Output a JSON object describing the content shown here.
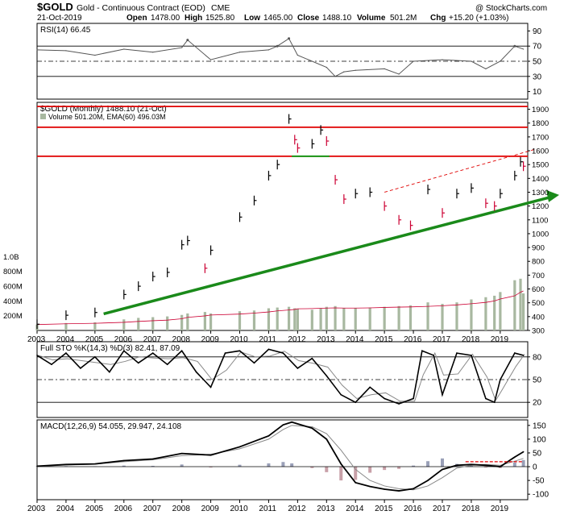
{
  "header": {
    "symbol": "$GOLD",
    "name": "Gold - Continuous Contract (EOD)",
    "exchange": "CME",
    "date": "21-Oct-2019",
    "open_label": "Open",
    "open": "1478.00",
    "high_label": "High",
    "high": "1525.80",
    "low_label": "Low",
    "low": "1465.00",
    "close_label": "Close",
    "close": "1488.10",
    "volume_label": "Volume",
    "volume": "501.2M",
    "chg_label": "Chg",
    "chg": "+15.20 (+1.03%)",
    "watermark": "@ StockCharts.com"
  },
  "colors": {
    "up": "#000000",
    "down": "#cc0033",
    "resistance": "#e00000",
    "trend": "#1a8a1a",
    "support": "#1a9a1a",
    "volume": "#a8b8a0",
    "ema": "#cc0033",
    "indicator": "#000000",
    "signal": "#888888"
  },
  "chart_data": [
    {
      "type": "line",
      "panel": "rsi",
      "legend": "RSI(14) 66.45",
      "y_ticks": [
        10,
        30,
        50,
        70,
        90
      ],
      "levels": [
        30,
        70
      ],
      "ylim": [
        0,
        100
      ],
      "x": [
        2003.0,
        2004.0,
        2005.0,
        2006.0,
        2007.0,
        2008.0,
        2008.2,
        2009.0,
        2010.0,
        2011.0,
        2011.3,
        2011.7,
        2012.0,
        2013.0,
        2013.3,
        2013.6,
        2014.0,
        2015.0,
        2015.5,
        2016.0,
        2017.0,
        2018.0,
        2018.5,
        2019.0,
        2019.5,
        2019.8
      ],
      "values": [
        65,
        64,
        58,
        66,
        62,
        68,
        78,
        52,
        62,
        65,
        70,
        80,
        58,
        42,
        30,
        36,
        38,
        40,
        33,
        50,
        52,
        50,
        40,
        50,
        70,
        66
      ]
    },
    {
      "type": "bar",
      "panel": "price",
      "legend_price": "$GOLD (Monthly) 1488.10 (21-Oct)",
      "legend_volume": "Volume 501.20M, EMA(60) 496.03M",
      "y_ticks": [
        300,
        400,
        500,
        600,
        700,
        800,
        900,
        1000,
        1100,
        1200,
        1300,
        1400,
        1500,
        1600,
        1700,
        1800,
        1900
      ],
      "volume_ticks": [
        "200M",
        "400M",
        "600M",
        "800M",
        "1.0B"
      ],
      "volume_tick_values": [
        200,
        400,
        600,
        800,
        1000
      ],
      "ylim": [
        300,
        1950
      ],
      "resistance_levels": [
        1920,
        1770,
        1560
      ],
      "support_line": {
        "x": [
          2011.8,
          2013.1
        ],
        "y": [
          1560,
          1560
        ]
      },
      "trendline": {
        "x": [
          2005.3,
          2020.2
        ],
        "y": [
          420,
          1280
        ]
      },
      "channel_line": {
        "x": [
          2015.0,
          2020.2
        ],
        "y": [
          1300,
          1610
        ]
      },
      "x": [
        2003.0,
        2004.0,
        2005.0,
        2006.0,
        2006.5,
        2007.0,
        2007.5,
        2008.0,
        2008.2,
        2008.8,
        2009.0,
        2010.0,
        2010.5,
        2011.0,
        2011.3,
        2011.7,
        2011.9,
        2012.0,
        2012.5,
        2012.8,
        2013.0,
        2013.3,
        2013.6,
        2014.0,
        2014.5,
        2015.0,
        2015.5,
        2015.9,
        2016.5,
        2017.0,
        2017.5,
        2018.0,
        2018.5,
        2018.8,
        2019.0,
        2019.5,
        2019.7,
        2019.8
      ],
      "values": [
        345,
        410,
        430,
        560,
        620,
        690,
        720,
        920,
        950,
        750,
        880,
        1120,
        1240,
        1420,
        1500,
        1830,
        1680,
        1620,
        1650,
        1750,
        1670,
        1390,
        1250,
        1290,
        1300,
        1200,
        1100,
        1060,
        1320,
        1150,
        1290,
        1330,
        1220,
        1200,
        1290,
        1420,
        1520,
        1488
      ],
      "volume_values": [
        80,
        100,
        110,
        150,
        170,
        180,
        190,
        210,
        230,
        250,
        230,
        260,
        270,
        300,
        310,
        320,
        300,
        290,
        280,
        300,
        320,
        330,
        300,
        300,
        310,
        320,
        330,
        340,
        380,
        360,
        380,
        420,
        450,
        470,
        520,
        680,
        700,
        501
      ]
    },
    {
      "type": "line",
      "panel": "stochastics",
      "legend": "Full STO %K(14,3) %D(3) 82.41, 87.09",
      "y_ticks": [
        20,
        50,
        80
      ],
      "levels": [
        20,
        50,
        80
      ],
      "ylim": [
        0,
        100
      ],
      "x": [
        2003.0,
        2003.5,
        2004.0,
        2004.5,
        2005.0,
        2005.5,
        2006.0,
        2006.5,
        2007.0,
        2007.5,
        2008.0,
        2008.5,
        2009.0,
        2009.5,
        2010.0,
        2010.5,
        2011.0,
        2011.5,
        2012.0,
        2012.5,
        2013.0,
        2013.5,
        2014.0,
        2014.5,
        2015.0,
        2015.5,
        2016.0,
        2016.3,
        2016.7,
        2017.0,
        2017.5,
        2018.0,
        2018.5,
        2018.8,
        2019.0,
        2019.5,
        2019.8
      ],
      "values": [
        82,
        70,
        85,
        65,
        80,
        60,
        88,
        72,
        85,
        70,
        88,
        60,
        40,
        85,
        88,
        72,
        90,
        85,
        65,
        78,
        55,
        30,
        20,
        40,
        25,
        18,
        25,
        88,
        82,
        30,
        85,
        82,
        25,
        20,
        50,
        85,
        82
      ]
    },
    {
      "type": "line",
      "panel": "macd",
      "legend": "MACD(12,26,9) 54.055, 29.947, 24.108",
      "y_ticks": [
        -100,
        -50,
        0,
        50,
        100,
        150
      ],
      "ylim": [
        -120,
        170
      ],
      "annotation_line": {
        "x": [
          2017.8,
          2019.8
        ],
        "y": [
          18,
          18
        ]
      },
      "x": [
        2003.0,
        2004.0,
        2005.0,
        2006.0,
        2007.0,
        2008.0,
        2009.0,
        2010.0,
        2011.0,
        2011.5,
        2011.8,
        2012.5,
        2013.0,
        2013.5,
        2014.0,
        2014.5,
        2015.0,
        2015.5,
        2016.0,
        2016.5,
        2017.0,
        2017.5,
        2018.0,
        2018.5,
        2019.0,
        2019.5,
        2019.8
      ],
      "macd": [
        2,
        8,
        10,
        22,
        28,
        48,
        42,
        72,
        112,
        152,
        162,
        140,
        100,
        10,
        -58,
        -72,
        -82,
        -88,
        -80,
        -50,
        -10,
        5,
        8,
        5,
        0,
        35,
        54
      ],
      "signal": [
        1,
        6,
        9,
        18,
        25,
        40,
        45,
        65,
        100,
        135,
        150,
        145,
        120,
        60,
        -10,
        -50,
        -70,
        -80,
        -84,
        -70,
        -40,
        -5,
        5,
        8,
        5,
        20,
        30
      ],
      "histogram": [
        1,
        2,
        1,
        4,
        3,
        8,
        -3,
        7,
        12,
        17,
        12,
        -5,
        -20,
        -50,
        -48,
        -22,
        -12,
        -8,
        4,
        20,
        30,
        10,
        3,
        -3,
        -5,
        15,
        24
      ]
    }
  ],
  "x_axis": {
    "ticks": [
      "2003",
      "2004",
      "2005",
      "2006",
      "2007",
      "2008",
      "2009",
      "2010",
      "2011",
      "2012",
      "2013",
      "2014",
      "2015",
      "2016",
      "2017",
      "2018",
      "2019"
    ],
    "tick_values": [
      2003,
      2004,
      2005,
      2006,
      2007,
      2008,
      2009,
      2010,
      2011,
      2012,
      2013,
      2014,
      2015,
      2016,
      2017,
      2018,
      2019
    ]
  }
}
